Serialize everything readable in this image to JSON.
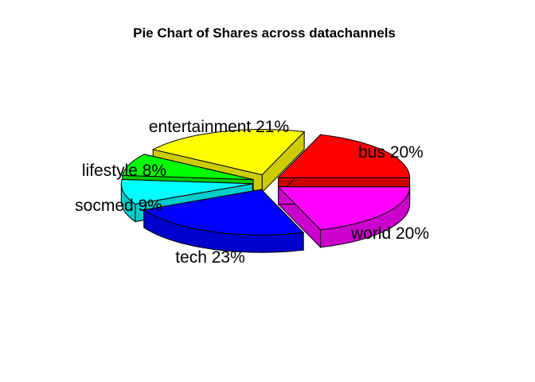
{
  "chart_data": {
    "type": "pie",
    "style": "3d exploded",
    "title": "Pie Chart of Shares across datachannels",
    "slices": [
      {
        "label": "bus 20%",
        "category": "bus",
        "percent": 20,
        "color": "#FF0000",
        "side_color": "#CC0000"
      },
      {
        "label": "entertainment 21%",
        "category": "entertainment",
        "percent": 21,
        "color": "#FFFF00",
        "side_color": "#CCCC00"
      },
      {
        "label": "lifestyle 8%",
        "category": "lifestyle",
        "percent": 8,
        "color": "#00FF00",
        "side_color": "#00CC00"
      },
      {
        "label": "socmed 9%",
        "category": "socmed",
        "percent": 9,
        "color": "#00FFFF",
        "side_color": "#00CCCC"
      },
      {
        "label": "tech 23%",
        "category": "tech",
        "percent": 23,
        "color": "#0000FF",
        "side_color": "#0000CC"
      },
      {
        "label": "world 20%",
        "category": "world",
        "percent": 20,
        "color": "#FF00FF",
        "side_color": "#CC00CC"
      }
    ]
  }
}
